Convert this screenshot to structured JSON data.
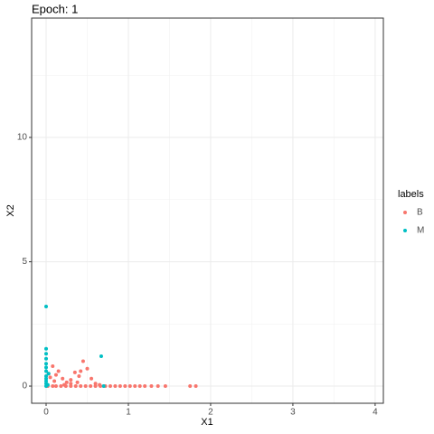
{
  "chart_data": {
    "type": "scatter",
    "title": "Epoch: 1",
    "x_label": "X1",
    "y_label": "X2",
    "xlim": [
      -0.176,
      4.1
    ],
    "ylim": [
      -0.69,
      14.8
    ],
    "xticks": [
      0,
      1,
      2,
      3,
      4
    ],
    "yticks": [
      0,
      5,
      10
    ],
    "x_minor_ticks": [
      0.5,
      1.5,
      2.5,
      3.5
    ],
    "y_minor_ticks": [
      2.5,
      7.5,
      12.5
    ],
    "grid": true,
    "legend_title": "labels",
    "legend": "right",
    "series": [
      {
        "name": "B",
        "color": "#F8766D",
        "x": [
          0.02,
          0.08,
          0.12,
          0.18,
          0.24,
          0.3,
          0.36,
          0.42,
          0.48,
          0.54,
          0.6,
          0.66,
          0.72,
          0.78,
          0.84,
          0.9,
          0.96,
          1.02,
          1.08,
          1.14,
          1.2,
          1.28,
          1.36,
          1.45,
          1.75,
          1.82,
          0.12,
          0.2,
          0.3,
          0.35,
          0.42,
          0.45,
          0.5,
          0.4,
          0.25,
          0.55,
          0.6,
          0.05,
          0.15,
          0.1,
          0.3,
          0.08,
          0.03,
          0.22,
          0.38,
          0.65
        ],
        "values": [
          0,
          0,
          0,
          0,
          0,
          0,
          0,
          0,
          0,
          0,
          0,
          0,
          0,
          0,
          0,
          0,
          0,
          0,
          0,
          0,
          0,
          0,
          0,
          0,
          0,
          0,
          0.45,
          0.3,
          0.25,
          0.55,
          0.6,
          1.0,
          0.7,
          0.4,
          0.15,
          0.3,
          0.1,
          0.35,
          0.6,
          0.2,
          0.1,
          0.8,
          0.5,
          0.05,
          0.15,
          0.05
        ]
      },
      {
        "name": "M",
        "color": "#00BFC4",
        "x": [
          0,
          0,
          0,
          0,
          0,
          0,
          0,
          0,
          0,
          0,
          0,
          0,
          0.67,
          0.02,
          0.7,
          0.03
        ],
        "values": [
          3.2,
          1.5,
          1.3,
          1.1,
          0.9,
          0.75,
          0.6,
          0.4,
          0.3,
          0.2,
          0.1,
          0,
          1.2,
          0.05,
          0,
          0.5
        ]
      }
    ]
  }
}
